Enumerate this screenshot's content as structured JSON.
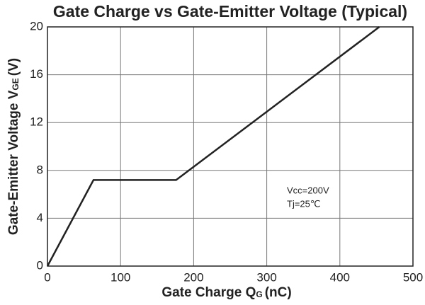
{
  "chart_data": {
    "type": "line",
    "title": "Gate Charge vs Gate-Emitter Voltage (Typical)",
    "x_label": {
      "main": "Gate Charge Q",
      "sub": "G",
      "unit": "(nC)"
    },
    "y_label": {
      "main": "Gate-Emitter Voltage V",
      "sub": "GE",
      "unit": "(V)"
    },
    "x": [
      0,
      63,
      176,
      454
    ],
    "values": [
      0,
      7.2,
      7.2,
      20
    ],
    "color": "#222222",
    "xlim": [
      0,
      500
    ],
    "xticks": [
      0,
      100,
      200,
      300,
      400,
      500
    ],
    "ylim": [
      0,
      20
    ],
    "yticks": [
      0,
      4,
      8,
      12,
      16,
      20
    ],
    "grid": true,
    "annotations": [
      "Vcc=200V",
      "Tj=25℃"
    ]
  }
}
